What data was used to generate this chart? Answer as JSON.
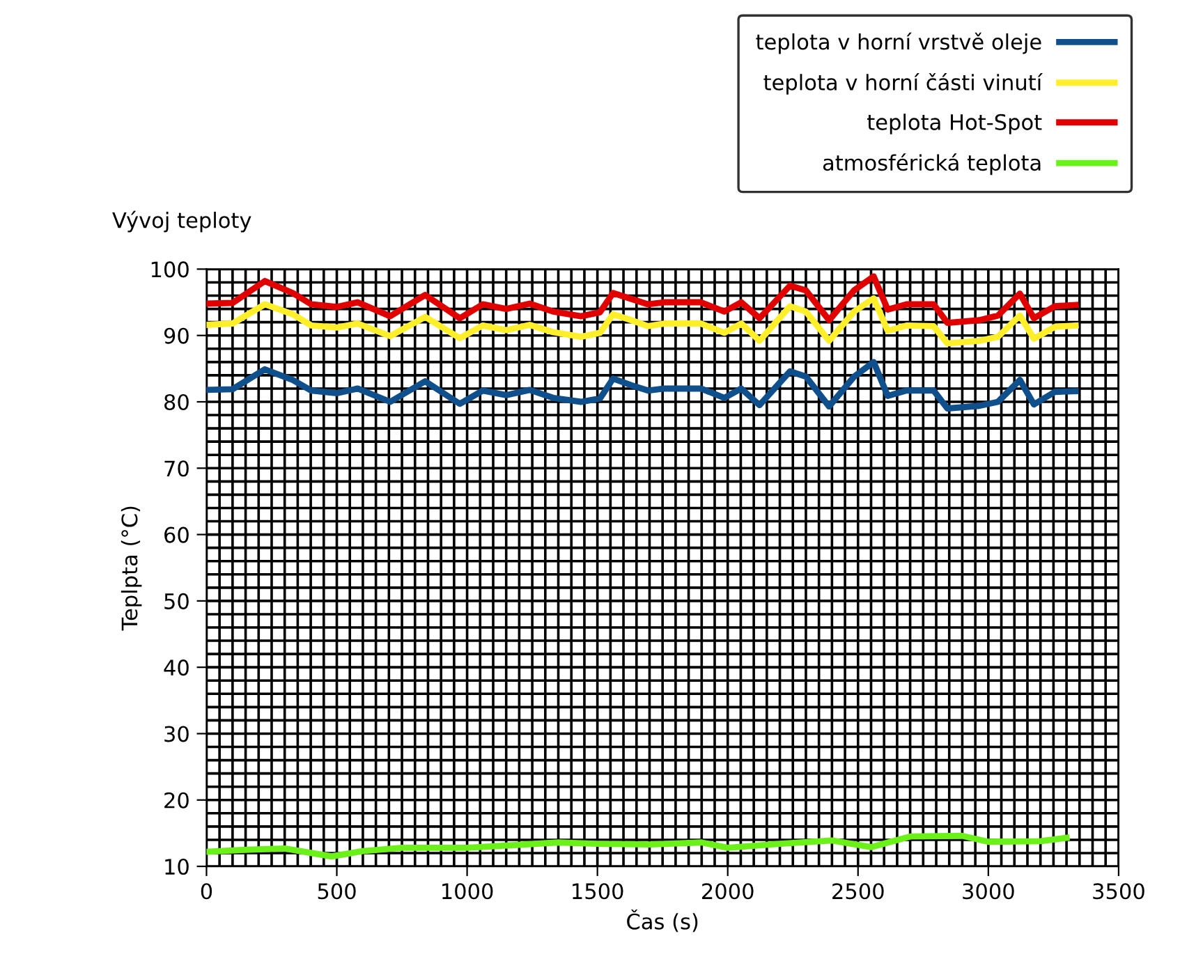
{
  "chart_data": {
    "type": "line",
    "title": "Vývoj teploty",
    "xlabel": "Čas (s)",
    "ylabel": "Teplpta (°C)",
    "x": [
      0,
      100,
      224,
      331,
      402,
      500,
      580,
      705,
      839,
      972,
      1060,
      1150,
      1240,
      1330,
      1437,
      1510,
      1560,
      1630,
      1694,
      1757,
      1897,
      1987,
      2052,
      2122,
      2239,
      2300,
      2389,
      2485,
      2560,
      2614,
      2686,
      2790,
      2843,
      2966,
      3037,
      3121,
      3175,
      3255,
      3335
    ],
    "series": [
      {
        "name": "teplota v horní vrstvě oleje",
        "color": "#0f4f8c",
        "values": [
          81.8,
          81.9,
          84.9,
          83.3,
          81.7,
          81.3,
          82.0,
          80.0,
          83.1,
          79.7,
          81.7,
          81.0,
          81.8,
          80.6,
          80.0,
          80.5,
          83.5,
          82.5,
          81.7,
          82.0,
          82.0,
          80.6,
          82.0,
          79.5,
          84.6,
          83.8,
          79.3,
          83.8,
          86.0,
          80.9,
          81.7,
          81.7,
          79.0,
          79.4,
          80.0,
          83.3,
          79.6,
          81.5,
          81.6
        ]
      },
      {
        "name": "teplota v horní části vinutí",
        "color": "#ffef2a",
        "values": [
          91.6,
          91.8,
          94.7,
          93.2,
          91.5,
          91.2,
          91.8,
          89.9,
          92.8,
          89.6,
          91.5,
          90.8,
          91.6,
          90.5,
          89.8,
          90.4,
          93.2,
          92.3,
          91.4,
          91.8,
          91.8,
          90.4,
          91.8,
          89.2,
          94.4,
          93.6,
          89.2,
          93.6,
          95.6,
          90.7,
          91.5,
          91.4,
          88.8,
          89.2,
          89.8,
          93.0,
          89.5,
          91.3,
          91.5
        ]
      },
      {
        "name": "teplota Hot-Spot",
        "color": "#e00000",
        "values": [
          94.8,
          94.9,
          98.2,
          96.4,
          94.7,
          94.3,
          95.0,
          92.9,
          96.1,
          92.6,
          94.7,
          94.0,
          94.8,
          93.6,
          92.9,
          93.5,
          96.4,
          95.5,
          94.7,
          95.0,
          95.0,
          93.6,
          95.0,
          92.6,
          97.5,
          96.8,
          92.3,
          96.8,
          98.9,
          93.9,
          94.7,
          94.7,
          91.9,
          92.3,
          93.0,
          96.3,
          92.6,
          94.4,
          94.6
        ]
      },
      {
        "name": "atmosférická teplota",
        "color": "#6cf01a",
        "x": [
          0,
          150,
          300,
          480,
          600,
          750,
          1000,
          1350,
          1500,
          1700,
          1900,
          2000,
          2200,
          2400,
          2550,
          2700,
          2900,
          3000,
          3200,
          3300
        ],
        "values": [
          12.2,
          12.5,
          12.7,
          11.5,
          12.3,
          12.8,
          12.8,
          13.6,
          13.4,
          13.3,
          13.6,
          12.8,
          13.4,
          13.9,
          12.9,
          14.5,
          14.6,
          13.7,
          13.8,
          14.3
        ]
      }
    ],
    "xlim": [
      0,
      3500
    ],
    "ylim": [
      10,
      100
    ],
    "xticks": [
      0,
      {
        "value": 50,
        "label": null
      },
      {
        "value": 100,
        "label": null
      },
      {
        "value": 150,
        "label": null
      },
      {
        "value": 200,
        "label": null
      },
      {
        "value": 250,
        "label": null
      },
      {
        "value": 300,
        "label": null
      },
      {
        "value": 350,
        "label": null
      },
      {
        "value": 400,
        "label": null
      },
      {
        "value": 450,
        "label": null
      },
      500,
      {
        "value": 550,
        "label": null
      },
      {
        "value": 600,
        "label": null
      },
      {
        "value": 650,
        "label": null
      },
      {
        "value": 700,
        "label": null
      },
      {
        "value": 750,
        "label": null
      },
      {
        "value": 800,
        "label": null
      },
      {
        "value": 850,
        "label": null
      },
      {
        "value": 900,
        "label": null
      },
      {
        "value": 950,
        "label": null
      },
      1000,
      {
        "value": 1050,
        "label": null
      },
      {
        "value": 1100,
        "label": null
      },
      {
        "value": 1150,
        "label": null
      },
      {
        "value": 1200,
        "label": null
      },
      {
        "value": 1250,
        "label": null
      },
      {
        "value": 1300,
        "label": null
      },
      {
        "value": 1350,
        "label": null
      },
      {
        "value": 1400,
        "label": null
      },
      {
        "value": 1450,
        "label": null
      },
      1500,
      {
        "value": 1550,
        "label": null
      },
      {
        "value": 1600,
        "label": null
      },
      {
        "value": 1650,
        "label": null
      },
      {
        "value": 1700,
        "label": null
      },
      {
        "value": 1750,
        "label": null
      },
      {
        "value": 1800,
        "label": null
      },
      {
        "value": 1850,
        "label": null
      },
      {
        "value": 1900,
        "label": null
      },
      {
        "value": 1950,
        "label": null
      },
      2000,
      {
        "value": 2050,
        "label": null
      },
      {
        "value": 2100,
        "label": null
      },
      {
        "value": 2150,
        "label": null
      },
      {
        "value": 2200,
        "label": null
      },
      {
        "value": 2250,
        "label": null
      },
      {
        "value": 2300,
        "label": null
      },
      {
        "value": 2350,
        "label": null
      },
      {
        "value": 2400,
        "label": null
      },
      {
        "value": 2450,
        "label": null
      },
      2500,
      {
        "value": 2550,
        "label": null
      },
      {
        "value": 2600,
        "label": null
      },
      {
        "value": 2650,
        "label": null
      },
      {
        "value": 2700,
        "label": null
      },
      {
        "value": 2750,
        "label": null
      },
      {
        "value": 2800,
        "label": null
      },
      {
        "value": 2850,
        "label": null
      },
      {
        "value": 2900,
        "label": null
      },
      {
        "value": 2950,
        "label": null
      },
      3000,
      {
        "value": 3050,
        "label": null
      },
      {
        "value": 3100,
        "label": null
      },
      {
        "value": 3150,
        "label": null
      },
      {
        "value": 3200,
        "label": null
      },
      {
        "value": 3250,
        "label": null
      },
      {
        "value": 3300,
        "label": null
      },
      {
        "value": 3350,
        "label": null
      },
      {
        "value": 3400,
        "label": null
      },
      {
        "value": 3450,
        "label": null
      },
      3500
    ],
    "yticks": [
      10,
      {
        "value": 12,
        "label": null
      },
      {
        "value": 14,
        "label": null
      },
      {
        "value": 16,
        "label": null
      },
      {
        "value": 18,
        "label": null
      },
      20,
      {
        "value": 22,
        "label": null
      },
      {
        "value": 24,
        "label": null
      },
      {
        "value": 26,
        "label": null
      },
      {
        "value": 28,
        "label": null
      },
      30,
      {
        "value": 32,
        "label": null
      },
      {
        "value": 34,
        "label": null
      },
      {
        "value": 36,
        "label": null
      },
      {
        "value": 38,
        "label": null
      },
      40,
      {
        "value": 42,
        "label": null
      },
      {
        "value": 44,
        "label": null
      },
      {
        "value": 46,
        "label": null
      },
      {
        "value": 48,
        "label": null
      },
      50,
      {
        "value": 52,
        "label": null
      },
      {
        "value": 54,
        "label": null
      },
      {
        "value": 56,
        "label": null
      },
      {
        "value": 58,
        "label": null
      },
      60,
      {
        "value": 62,
        "label": null
      },
      {
        "value": 64,
        "label": null
      },
      {
        "value": 66,
        "label": null
      },
      {
        "value": 68,
        "label": null
      },
      70,
      {
        "value": 72,
        "label": null
      },
      {
        "value": 74,
        "label": null
      },
      {
        "value": 76,
        "label": null
      },
      {
        "value": 78,
        "label": null
      },
      80,
      {
        "value": 82,
        "label": null
      },
      {
        "value": 84,
        "label": null
      },
      {
        "value": 86,
        "label": null
      },
      {
        "value": 88,
        "label": null
      },
      90,
      {
        "value": 92,
        "label": null
      },
      {
        "value": 94,
        "label": null
      },
      {
        "value": 96,
        "label": null
      },
      {
        "value": 98,
        "label": null
      },
      100
    ],
    "grid": true,
    "legend": "top right",
    "marker": "none",
    "line_style": "solid"
  }
}
